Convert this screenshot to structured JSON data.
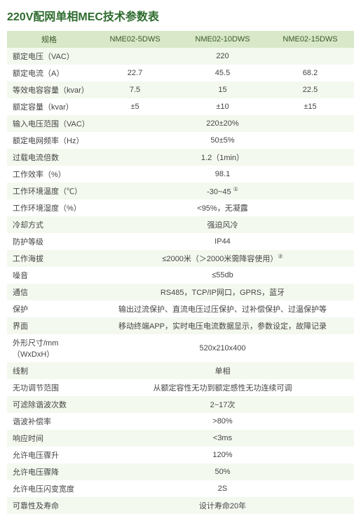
{
  "title": "220V配网单相MEC技术参数表",
  "colors": {
    "title": "#2e6b2e",
    "header_bg": "#d8e8c8",
    "row_odd": "#f4f9ef",
    "row_even": "#ffffff"
  },
  "columns": [
    "规格",
    "NME02-5DWS",
    "NME02-10DWS",
    "NME02-15DWS"
  ],
  "rows": [
    {
      "label": "额定电压（VAC）",
      "cells": [
        "220"
      ],
      "span": 3
    },
    {
      "label": "额定电流（A）",
      "cells": [
        "22.7",
        "45.5",
        "68.2"
      ]
    },
    {
      "label": "等效电容容量（kvar）",
      "cells": [
        "7.5",
        "15",
        "22.5"
      ]
    },
    {
      "label": "额定容量（kvar）",
      "cells": [
        "±5",
        "±10",
        "±15"
      ]
    },
    {
      "label": "输入电压范围（VAC）",
      "cells": [
        "220±20%"
      ],
      "span": 3
    },
    {
      "label": "额定电网频率（Hz）",
      "cells": [
        "50±5%"
      ],
      "span": 3
    },
    {
      "label": "过载电流倍数",
      "cells": [
        "1.2（1min）"
      ],
      "span": 3
    },
    {
      "label": "工作效率（%）",
      "cells": [
        "98.1"
      ],
      "span": 3
    },
    {
      "label": "工作环境温度（℃）",
      "cells": [
        "-30~45 ①"
      ],
      "span": 3,
      "sup": true
    },
    {
      "label": "工作环境湿度（%）",
      "cells": [
        "<95%，无凝露"
      ],
      "span": 3
    },
    {
      "label": "冷却方式",
      "cells": [
        "强迫风冷"
      ],
      "span": 3
    },
    {
      "label": "防护等级",
      "cells": [
        "IP44"
      ],
      "span": 3
    },
    {
      "label": "工作海拔",
      "cells": [
        "≤2000米（＞2000米需降容使用）②"
      ],
      "span": 3,
      "sup": true
    },
    {
      "label": "噪音",
      "cells": [
        "≤55db"
      ],
      "span": 3
    },
    {
      "label": "通信",
      "cells": [
        "RS485，TCP/IP网口，GPRS，蓝牙"
      ],
      "span": 3
    },
    {
      "label": "保护",
      "cells": [
        "输出过流保护、直流电压过压保护、过补偿保护、过温保护等"
      ],
      "span": 3
    },
    {
      "label": "界面",
      "cells": [
        "移动终端APP，实时电压电流数据显示，参数设定，故障记录"
      ],
      "span": 3
    },
    {
      "label": "外形尺寸/mm（WxDxH）",
      "cells": [
        "520x210x400"
      ],
      "span": 3
    },
    {
      "label": "线制",
      "cells": [
        "单相"
      ],
      "span": 3
    },
    {
      "label": "无功调节范围",
      "cells": [
        "从额定容性无功到额定感性无功连续可调"
      ],
      "span": 3
    },
    {
      "label": "可滤除谐波次数",
      "cells": [
        "2~17次"
      ],
      "span": 3
    },
    {
      "label": "谐波补偿率",
      "cells": [
        ">80%"
      ],
      "span": 3
    },
    {
      "label": "响应时间",
      "cells": [
        "<3ms"
      ],
      "span": 3
    },
    {
      "label": "允许电压骤升",
      "cells": [
        "120%"
      ],
      "span": 3
    },
    {
      "label": "允许电压骤降",
      "cells": [
        "50%"
      ],
      "span": 3
    },
    {
      "label": "允许电压闪变宽度",
      "cells": [
        "2S"
      ],
      "span": 3
    },
    {
      "label": "可靠性及寿命",
      "cells": [
        "设计寿命20年"
      ],
      "span": 3
    }
  ]
}
